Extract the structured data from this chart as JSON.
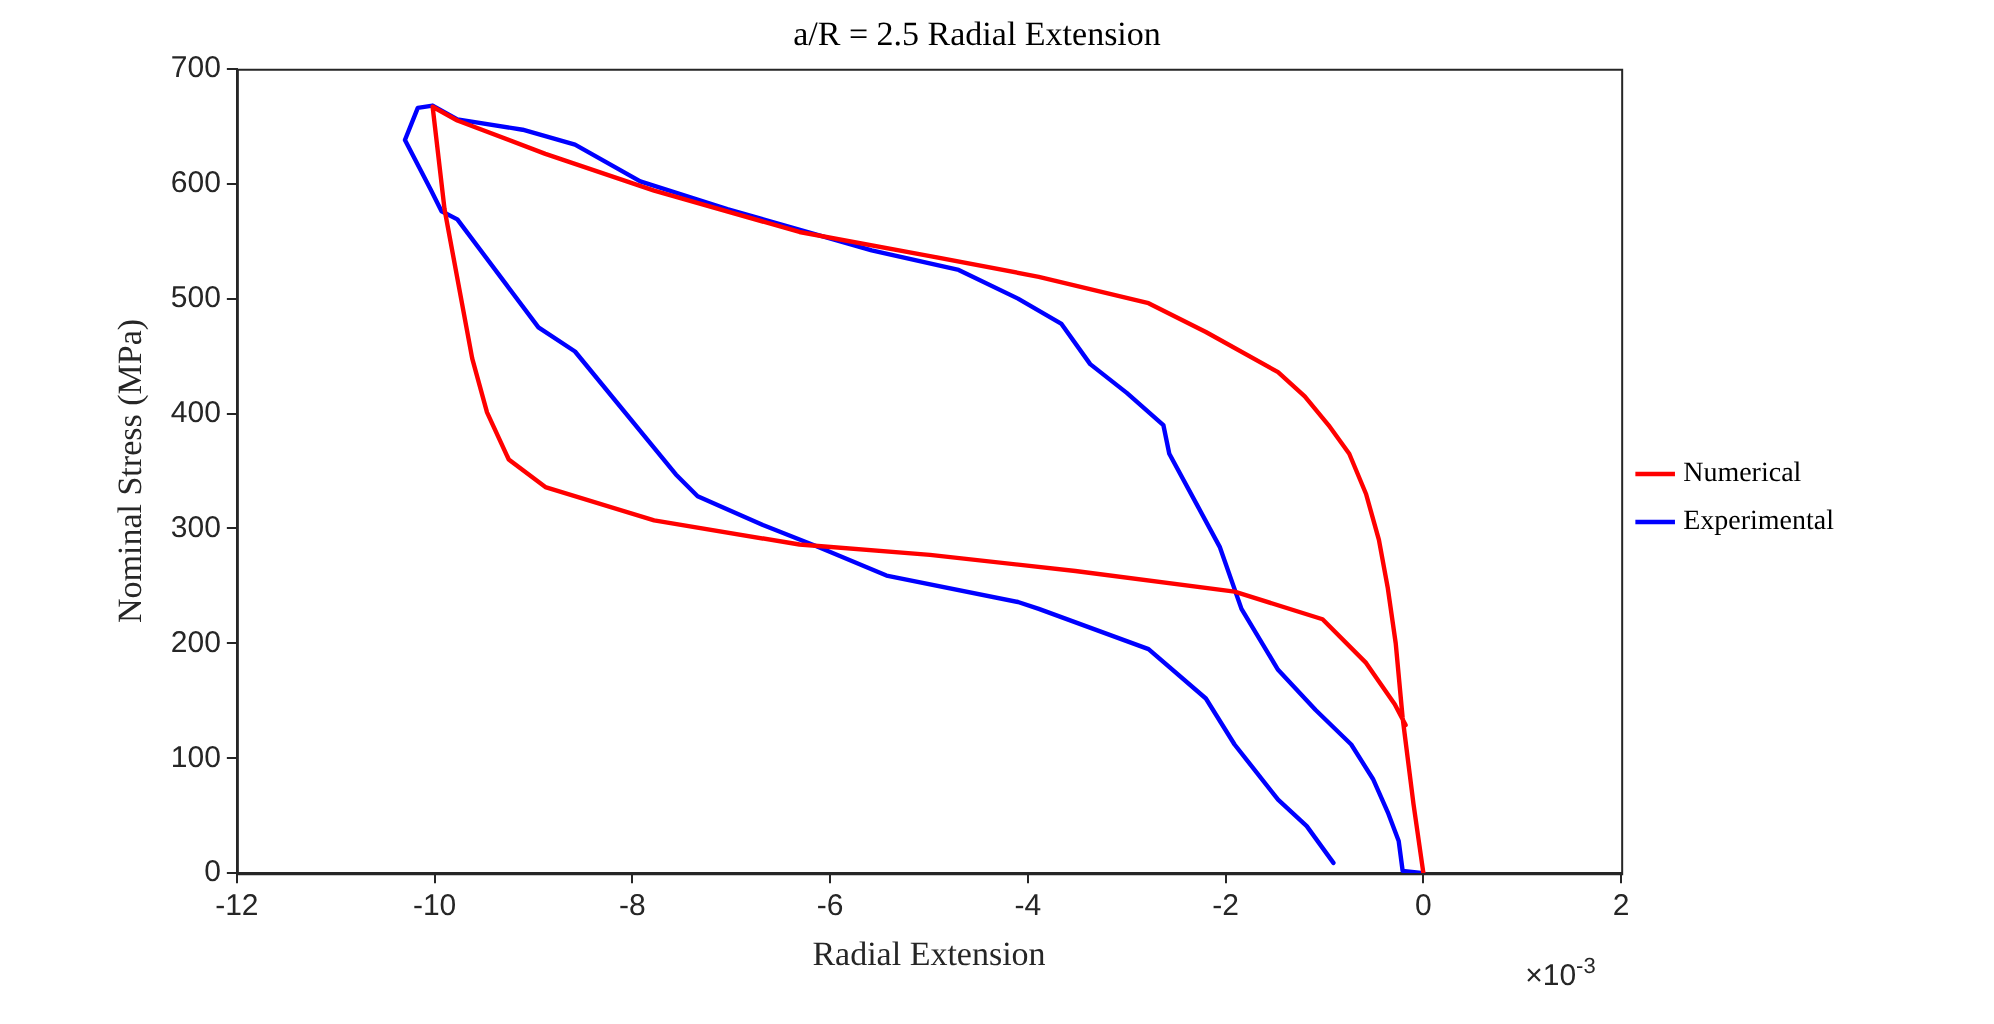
{
  "chart_data": {
    "type": "line",
    "title": "a/R = 2.5 Radial Extension",
    "xlabel": "Radial Extension",
    "ylabel": "Nominal Stress (MPa)",
    "annotations": [
      "×10$^{-3}$"
    ],
    "xlim": [
      -12,
      2
    ],
    "xticks": [
      -12,
      -10,
      -8,
      -6,
      -4,
      -2,
      0,
      2
    ],
    "ylim": [
      0,
      700
    ],
    "yticks": [
      0,
      100,
      200,
      300,
      400,
      500,
      600,
      700
    ],
    "grid": false,
    "legend": "right",
    "marker": "none",
    "line_style": "solid",
    "series": [
      {
        "name": "Numerical",
        "color": "#ff0000",
        "x": [
          0,
          -0.1,
          -0.21,
          -0.28,
          -0.36,
          -0.45,
          -0.58,
          -0.75,
          -0.96,
          -1.2,
          -1.47,
          -2.2,
          -2.78,
          -3.89,
          -4.99,
          -6.31,
          -7.78,
          -8.88,
          -9.77,
          -10.02,
          -9.9,
          -9.62,
          -9.47,
          -9.25,
          -8.88,
          -7.78,
          -6.31,
          -4.99,
          -3.52,
          -1.91,
          -1.02,
          -0.58,
          -0.29,
          -0.18
        ],
        "values": [
          0,
          60,
          135,
          200,
          248,
          290,
          330,
          365,
          390,
          415,
          436,
          471,
          496,
          519,
          537,
          558,
          594,
          626,
          655,
          667,
          578,
          448,
          401,
          360,
          336,
          307,
          286,
          277,
          263,
          245,
          221,
          183,
          147,
          129
        ]
      },
      {
        "name": "Experimental",
        "color": "#0000ff",
        "x": [
          0,
          -0.21,
          -0.25,
          -0.36,
          -0.51,
          -0.73,
          -1.09,
          -1.47,
          -1.84,
          -2.06,
          -2.28,
          -2.57,
          -2.63,
          -3.0,
          -3.37,
          -3.66,
          -4.1,
          -4.7,
          -5.58,
          -7.04,
          -7.92,
          -8.58,
          -9.11,
          -9.77,
          -10.02,
          -10.17,
          -10.3,
          -10.04,
          -9.93,
          -9.77,
          -8.95,
          -8.58,
          -7.56,
          -7.34,
          -6.68,
          -6.15,
          -5.43,
          -4.1,
          -3.89,
          -2.78,
          -2.2,
          -1.91,
          -1.47,
          -1.18,
          -0.91
        ],
        "values": [
          0,
          2,
          28,
          53,
          82,
          112,
          142,
          177,
          230,
          284,
          319,
          365,
          390,
          418,
          443,
          478,
          500,
          525,
          542,
          578,
          602,
          634,
          647,
          656,
          668,
          666,
          638,
          595,
          576,
          569,
          475,
          454,
          347,
          328,
          303,
          285,
          259,
          236,
          230,
          195,
          152,
          112,
          64,
          41,
          9
        ]
      }
    ]
  }
}
